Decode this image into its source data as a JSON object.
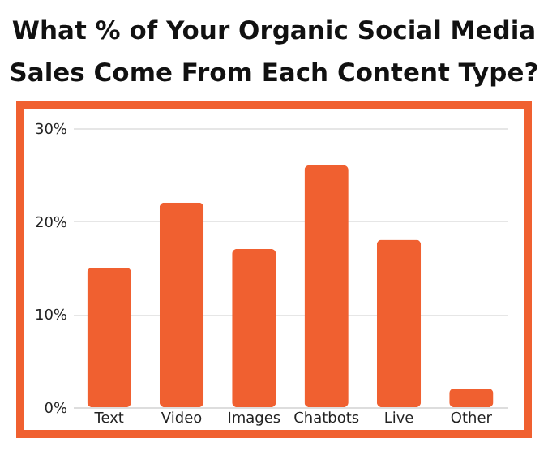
{
  "chart_data": {
    "type": "bar",
    "title": "What % of Your Organic Social Media Sales Come From Each Content Type?",
    "categories": [
      "Text",
      "Video",
      "Images",
      "Chatbots",
      "Live",
      "Other"
    ],
    "values": [
      15,
      22,
      17,
      26,
      18,
      2
    ],
    "color": "#f06030",
    "ylim": [
      0,
      30
    ],
    "yticks": [
      {
        "value": 0,
        "label": "0%"
      },
      {
        "value": 10,
        "label": "10%"
      },
      {
        "value": 20,
        "label": "20%"
      },
      {
        "value": 30,
        "label": "30%"
      }
    ],
    "grid": "y"
  }
}
